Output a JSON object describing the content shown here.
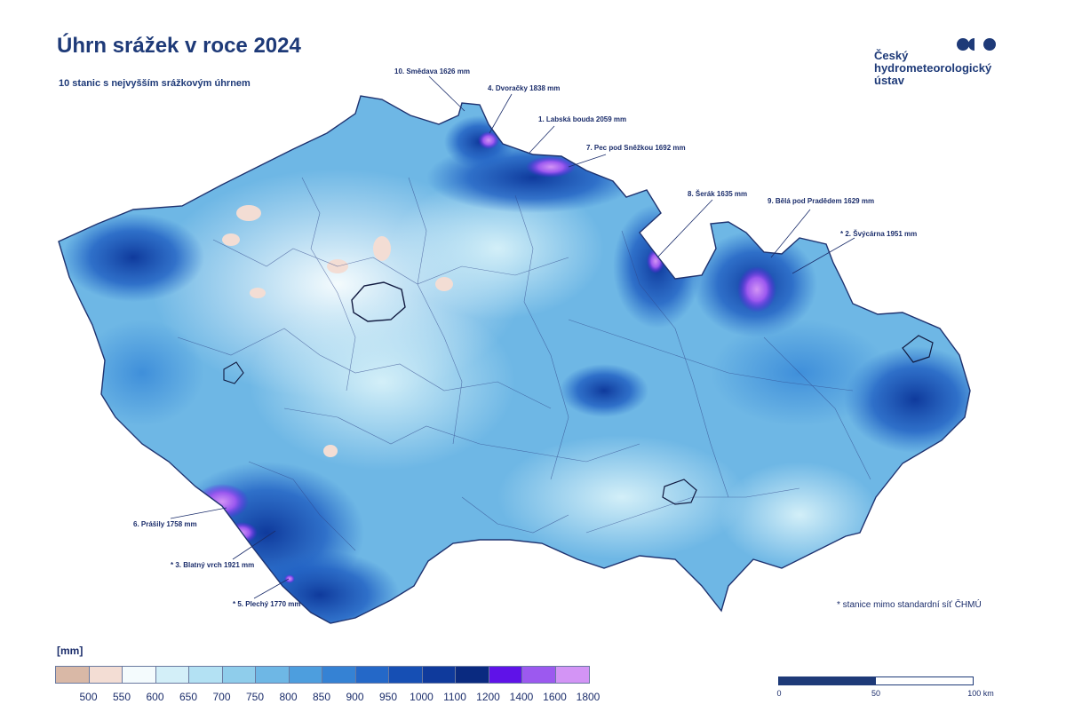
{
  "title": "Úhrn srážek v roce 2024",
  "subtitle": "10 stanic s nejvyšším srážkovým úhrnem",
  "logo": {
    "lines": [
      "Český",
      "hydrometeorologický",
      "ústav"
    ],
    "color": "#1e3a78"
  },
  "stations": [
    {
      "rank": "10.",
      "name": "Smědava",
      "value": "1626 mm",
      "label": "10. Smědava 1626 mm"
    },
    {
      "rank": "4.",
      "name": "Dvoračky",
      "value": "1838 mm",
      "label": "4. Dvoračky 1838 mm"
    },
    {
      "rank": "1.",
      "name": "Labská bouda",
      "value": "2059 mm",
      "label": "1. Labská bouda 2059 mm"
    },
    {
      "rank": "7.",
      "name": "Pec pod Sněžkou",
      "value": "1692 mm",
      "label": "7. Pec pod Sněžkou 1692 mm"
    },
    {
      "rank": "8.",
      "name": "Šerák",
      "value": "1635 mm",
      "label": "8. Šerák 1635 mm"
    },
    {
      "rank": "9.",
      "name": "Bělá pod Pradědem",
      "value": "1629 mm",
      "label": "9. Bělá pod Pradědem 1629 mm"
    },
    {
      "rank": "2.",
      "name": "Švýcárna",
      "value": "1951 mm",
      "label": "* 2. Švýcárna 1951 mm"
    },
    {
      "rank": "6.",
      "name": "Prášily",
      "value": "1758 mm",
      "label": "6. Prášily 1758 mm"
    },
    {
      "rank": "3.",
      "name": "Blatný vrch",
      "value": "1921 mm",
      "label": "* 3. Blatný vrch 1921 mm"
    },
    {
      "rank": "5.",
      "name": "Plechý",
      "value": "1770 mm",
      "label": "* 5. Plechý 1770 mm"
    }
  ],
  "footnote": "* stanice mimo standardní síť ČHMÚ",
  "legend": {
    "unit": "[mm]",
    "ticks": [
      "500",
      "550",
      "600",
      "650",
      "700",
      "750",
      "800",
      "850",
      "900",
      "950",
      "1000",
      "1100",
      "1200",
      "1400",
      "1600",
      "1800"
    ],
    "colors": [
      "#d9b8a6",
      "#f3ddd4",
      "#f4fbfd",
      "#d3eff8",
      "#b3e1f3",
      "#8fcdeb",
      "#6eb7e5",
      "#4d9ede",
      "#3582d4",
      "#2468c8",
      "#164fb4",
      "#0f3a9c",
      "#0a2a80",
      "#5f12e8",
      "#9c59ef",
      "#d394f5"
    ]
  },
  "scale": {
    "labels": [
      "0",
      "50",
      "100 km"
    ]
  }
}
